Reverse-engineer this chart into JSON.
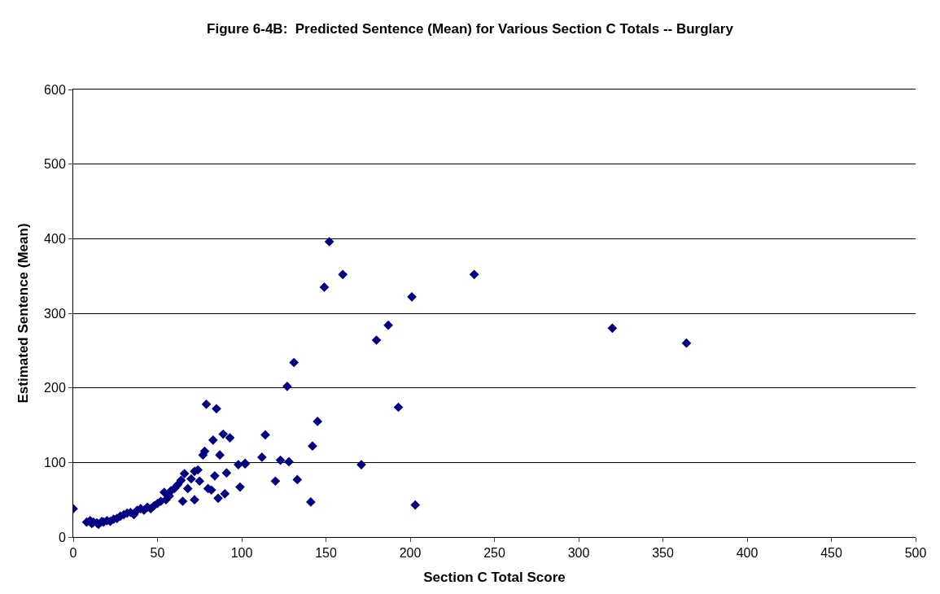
{
  "chart_data": {
    "type": "scatter",
    "title": "Figure 6-4B:  Predicted Sentence (Mean) for Various Section C Totals -- Burglary",
    "xlabel": "Section C Total Score",
    "ylabel": "Estimated Sentence (Mean)",
    "x": [
      0,
      8,
      10,
      11,
      12,
      14,
      15,
      17,
      18,
      20,
      22,
      24,
      26,
      28,
      30,
      32,
      34,
      36,
      38,
      40,
      42,
      44,
      46,
      48,
      50,
      52,
      54,
      55,
      57,
      58,
      60,
      62,
      64,
      65,
      66,
      68,
      70,
      72,
      72,
      74,
      75,
      77,
      78,
      79,
      80,
      82,
      83,
      84,
      85,
      86,
      87,
      89,
      90,
      91,
      93,
      98,
      99,
      102,
      102,
      112,
      114,
      120,
      123,
      127,
      128,
      131,
      133,
      141,
      142,
      145,
      149,
      152,
      160,
      171,
      180,
      187,
      193,
      201,
      203,
      238,
      320,
      364
    ],
    "series": [
      {
        "color": "#000080",
        "values": [
          38,
          20,
          22,
          18,
          20,
          19,
          17,
          21,
          20,
          22,
          21,
          24,
          25,
          28,
          30,
          32,
          33,
          30,
          36,
          38,
          36,
          40,
          38,
          42,
          45,
          48,
          60,
          50,
          55,
          62,
          65,
          70,
          76,
          48,
          85,
          65,
          78,
          50,
          88,
          90,
          75,
          110,
          115,
          178,
          65,
          63,
          130,
          82,
          172,
          52,
          110,
          138,
          58,
          86,
          133,
          97,
          67,
          98,
          99,
          107,
          137,
          75,
          103,
          202,
          101,
          234,
          77,
          47,
          122,
          155,
          335,
          396,
          352,
          97,
          264,
          284,
          174,
          322,
          43,
          352,
          280,
          260
        ]
      }
    ],
    "xlim": [
      0,
      500
    ],
    "xticks": [
      0,
      50,
      100,
      150,
      200,
      250,
      300,
      350,
      400,
      450,
      500
    ],
    "ylim": [
      0,
      600
    ],
    "yticks": [
      0,
      100,
      200,
      300,
      400,
      500,
      600
    ],
    "grid": "y",
    "marker": "diamond"
  }
}
